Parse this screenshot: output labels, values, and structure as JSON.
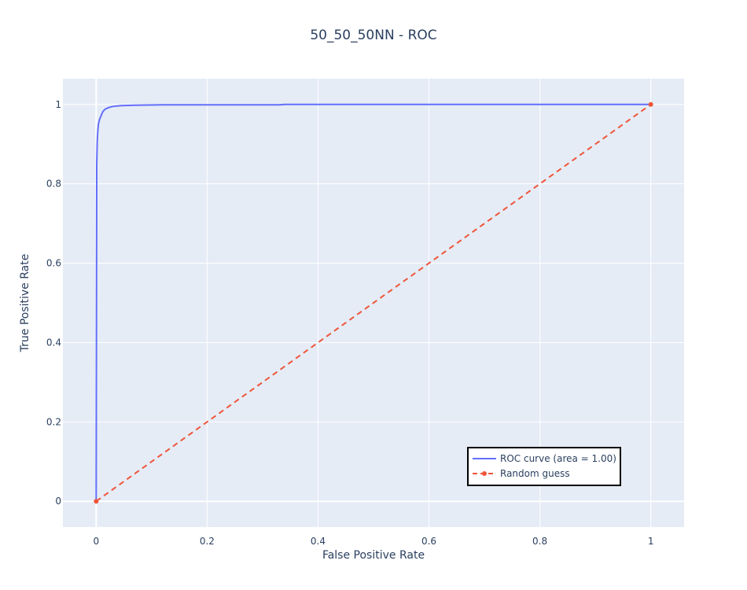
{
  "chart_data": {
    "type": "line",
    "title": "50_50_50NN - ROC",
    "xlabel": "False Positive Rate",
    "ylabel": "True Positive Rate",
    "xlim": [
      -0.06,
      1.06
    ],
    "ylim": [
      -0.065,
      1.065
    ],
    "xticks": [
      0,
      0.2,
      0.4,
      0.6,
      0.8,
      1
    ],
    "xtick_labels": [
      "0",
      "0.2",
      "0.4",
      "0.6",
      "0.8",
      "1"
    ],
    "yticks": [
      0,
      0.2,
      0.4,
      0.6,
      0.8,
      1
    ],
    "ytick_labels": [
      "0",
      "0.2",
      "0.4",
      "0.6",
      "0.8",
      "1"
    ],
    "grid": true,
    "legend_position": "bottom-right",
    "colors": {
      "plot_bg": "#e5ecf6",
      "grid": "#ffffff",
      "text": "#2a3f5f"
    },
    "series": [
      {
        "name": "ROC curve (area = 1.00)",
        "color": "#636efa",
        "style": "solid",
        "markers": false,
        "x": [
          0,
          0.001,
          0.002,
          0.003,
          0.004,
          0.006,
          0.009,
          0.012,
          0.016,
          0.022,
          0.03,
          0.045,
          0.07,
          0.12,
          0.33,
          0.34,
          1.0
        ],
        "y": [
          0,
          0.85,
          0.91,
          0.935,
          0.95,
          0.962,
          0.972,
          0.982,
          0.988,
          0.992,
          0.995,
          0.997,
          0.998,
          0.999,
          0.999,
          1.0,
          1.0
        ]
      },
      {
        "name": "Random guess",
        "color": "#ef553b",
        "style": "dash",
        "markers": true,
        "x": [
          0,
          1
        ],
        "y": [
          0,
          1
        ]
      }
    ]
  }
}
